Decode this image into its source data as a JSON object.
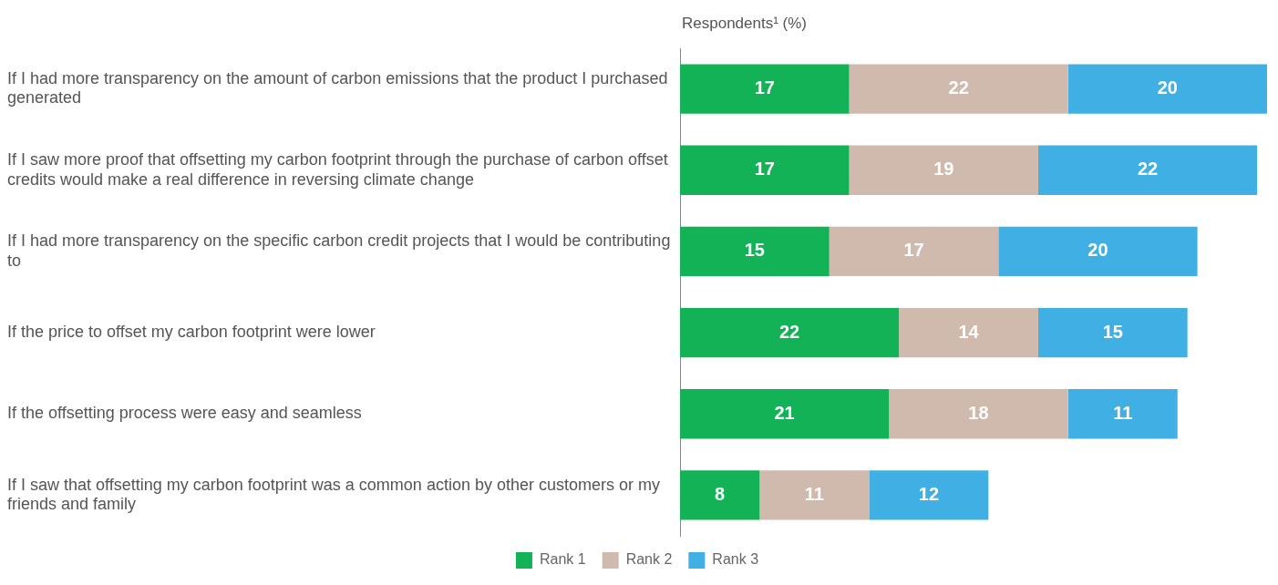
{
  "chart_data": {
    "type": "bar",
    "orientation": "horizontal",
    "stacked": true,
    "data_labels": true,
    "legend": "bottom",
    "title": "Respondents¹ (%)",
    "categories": [
      "If I had more transparency on the amount of carbon emissions that the product I purchased generated",
      "If I saw more proof that offsetting my carbon footprint through the purchase of carbon offset credits would make a real difference in reversing climate change",
      "If I had more transparency on the specific carbon credit projects that I would be contributing to",
      "If the price to offset my carbon footprint were lower",
      "If the offsetting process were easy and seamless",
      "If I saw that offsetting my carbon footprint was a common action by other customers or my friends and family"
    ],
    "series": [
      {
        "name": "Rank 1",
        "color": "#14b256",
        "values": [
          17,
          17,
          15,
          22,
          21,
          8
        ]
      },
      {
        "name": "Rank 2",
        "color": "#d0baad",
        "values": [
          22,
          19,
          17,
          14,
          18,
          11
        ]
      },
      {
        "name": "Rank 3",
        "color": "#40b0e4",
        "values": [
          20,
          22,
          20,
          15,
          11,
          12
        ]
      }
    ]
  }
}
